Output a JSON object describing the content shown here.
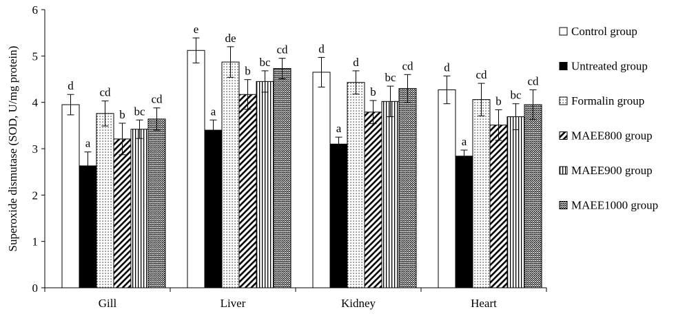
{
  "chart_data": {
    "type": "bar",
    "title": "",
    "xlabel": "",
    "ylabel": "Superoxide dismutase (SOD, U/mg protein)",
    "ylim": [
      0,
      6
    ],
    "yticks": [
      "0",
      "1",
      "2",
      "3",
      "4",
      "5",
      "6"
    ],
    "grid": false,
    "legend_position": "right",
    "categories": [
      "Gill",
      "Liver",
      "Kidney",
      "Heart"
    ],
    "series": [
      {
        "name": "Control group",
        "pattern": "white",
        "values": [
          3.95,
          5.12,
          4.65,
          4.27
        ],
        "errors": [
          0.22,
          0.27,
          0.32,
          0.3
        ],
        "letters": [
          "d",
          "e",
          "d",
          "d"
        ]
      },
      {
        "name": "Untreated group",
        "pattern": "black",
        "values": [
          2.63,
          3.4,
          3.1,
          2.84
        ],
        "errors": [
          0.3,
          0.22,
          0.15,
          0.13
        ],
        "letters": [
          "a",
          "a",
          "a",
          "a"
        ]
      },
      {
        "name": "Formalin group",
        "pattern": "dots",
        "values": [
          3.76,
          4.87,
          4.43,
          4.06
        ],
        "errors": [
          0.27,
          0.33,
          0.25,
          0.35
        ],
        "letters": [
          "cd",
          "de",
          "d",
          "cd"
        ]
      },
      {
        "name": "MAEE800 group",
        "pattern": "diagonal",
        "values": [
          3.21,
          4.17,
          3.79,
          3.51
        ],
        "errors": [
          0.34,
          0.32,
          0.25,
          0.33
        ],
        "letters": [
          "b",
          "b",
          "b",
          "b"
        ]
      },
      {
        "name": "MAEE900 group",
        "pattern": "vertical",
        "values": [
          3.42,
          4.45,
          4.02,
          3.69
        ],
        "errors": [
          0.2,
          0.23,
          0.33,
          0.28
        ],
        "letters": [
          "bc",
          "bc",
          "bc",
          "bc"
        ]
      },
      {
        "name": "MAEE1000 group",
        "pattern": "zigzag",
        "values": [
          3.64,
          4.73,
          4.3,
          3.95
        ],
        "errors": [
          0.24,
          0.22,
          0.3,
          0.32
        ],
        "letters": [
          "cd",
          "cd",
          "cd",
          "cd"
        ]
      }
    ]
  }
}
